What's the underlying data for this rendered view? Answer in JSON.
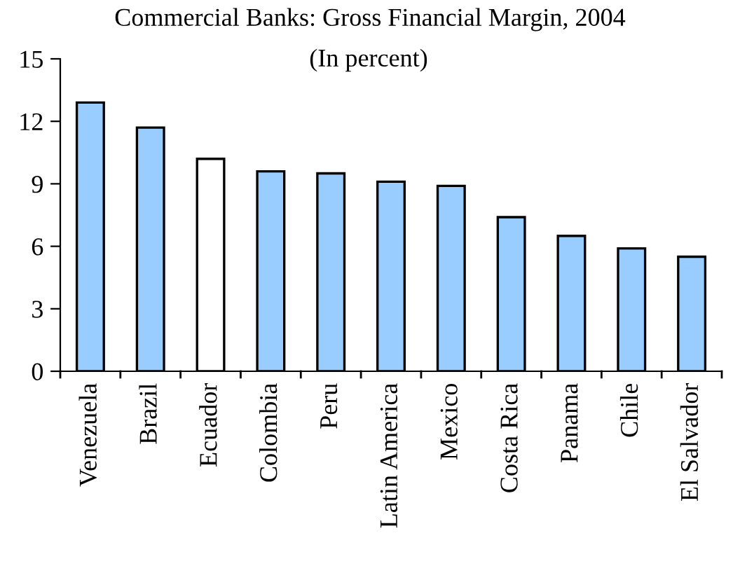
{
  "chart_data": {
    "type": "bar",
    "title": "Commercial Banks: Gross Financial Margin, 2004",
    "subtitle": "(In percent)",
    "categories": [
      "Venezuela",
      "Brazil",
      "Ecuador",
      "Colombia",
      "Peru",
      "Latin America",
      "Mexico",
      "Costa Rica",
      "Panama",
      "Chile",
      "El Salvador"
    ],
    "values": [
      12.9,
      11.7,
      10.2,
      9.6,
      9.5,
      9.1,
      8.9,
      7.4,
      6.5,
      5.9,
      5.5
    ],
    "colors": [
      "#99ccff",
      "#99ccff",
      "#ffffff",
      "#99ccff",
      "#99ccff",
      "#99ccff",
      "#99ccff",
      "#99ccff",
      "#99ccff",
      "#99ccff",
      "#99ccff"
    ],
    "ylim": [
      0,
      15
    ],
    "yticks": [
      0,
      3,
      6,
      9,
      12,
      15
    ],
    "grid": false,
    "legend": false
  }
}
